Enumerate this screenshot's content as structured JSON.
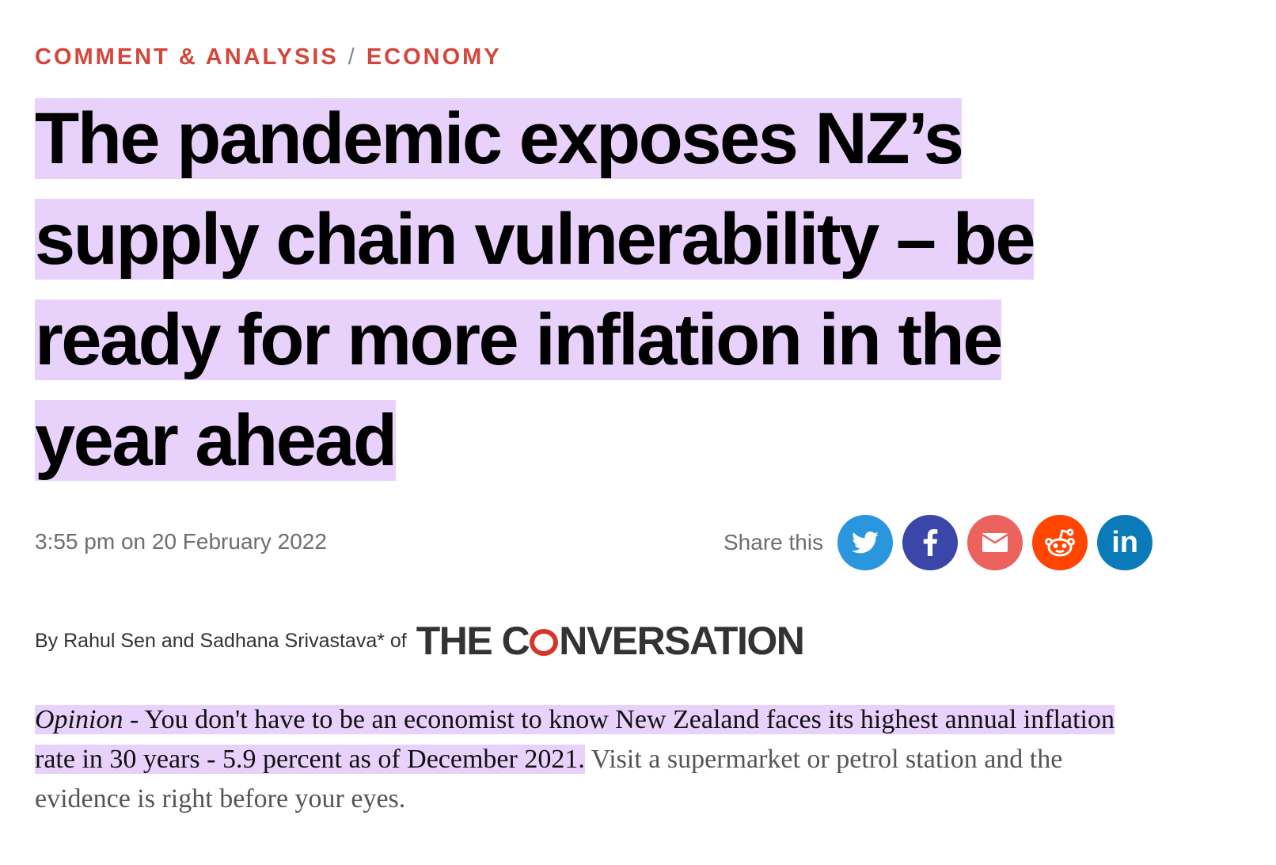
{
  "breadcrumb": {
    "section": "COMMENT & ANALYSIS",
    "separator": "/",
    "subsection": "ECONOMY"
  },
  "headline": "The pandemic exposes NZ’s supply chain vulnerability – be ready for more inflation in the year ahead",
  "date": "3:55 pm on 20 February 2022",
  "share": {
    "label": "Share this",
    "buttons": [
      {
        "name": "twitter",
        "icon": "twitter-icon",
        "color": "#2996de"
      },
      {
        "name": "facebook",
        "icon": "facebook-icon",
        "color": "#3a46a8"
      },
      {
        "name": "email",
        "icon": "email-icon",
        "color": "#ec625c"
      },
      {
        "name": "reddit",
        "icon": "reddit-icon",
        "color": "#ff4500"
      },
      {
        "name": "linkedin",
        "icon": "linkedin-icon",
        "color": "#0a7bb8"
      }
    ]
  },
  "byline": {
    "text": "By Rahul Sen and Sadhana Srivastava* of",
    "logo": "THE CONVERSATION"
  },
  "lead": {
    "opinion": "Opinion",
    "highlighted": " - You don't have to be an economist to know New Zealand faces its highest annual inflation rate in 30 years - 5.9 percent as of December 2021.",
    "rest": " Visit a supermarket or petrol station and the evidence is right before your eyes."
  }
}
